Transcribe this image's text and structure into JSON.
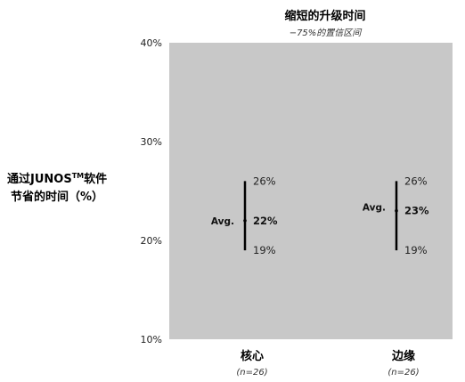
{
  "chart_data": {
    "type": "range",
    "title": "缩短的升级时间",
    "subtitle": "−75%的置信区间",
    "ylabel_line1": "通过JUNOS",
    "ylabel_tm": "TM",
    "ylabel_line1_end": "软件",
    "ylabel_line2": "节省的时间（%）",
    "ylim": [
      10,
      40
    ],
    "yticks": [
      10,
      20,
      30,
      40
    ],
    "ytick_labels": [
      "10%",
      "20%",
      "30%",
      "40%"
    ],
    "avg_label": "Avg.",
    "plot_background": "#c8c8c8",
    "categories": [
      {
        "name": "核心",
        "n": "(n=26)",
        "low": 19,
        "avg": 22,
        "high": 26,
        "low_label": "19%",
        "avg_label": "22%",
        "high_label": "26%"
      },
      {
        "name": "边缘",
        "n": "(n=26)",
        "low": 19,
        "avg": 23,
        "high": 26,
        "low_label": "19%",
        "avg_label": "23%",
        "high_label": "26%"
      }
    ]
  }
}
